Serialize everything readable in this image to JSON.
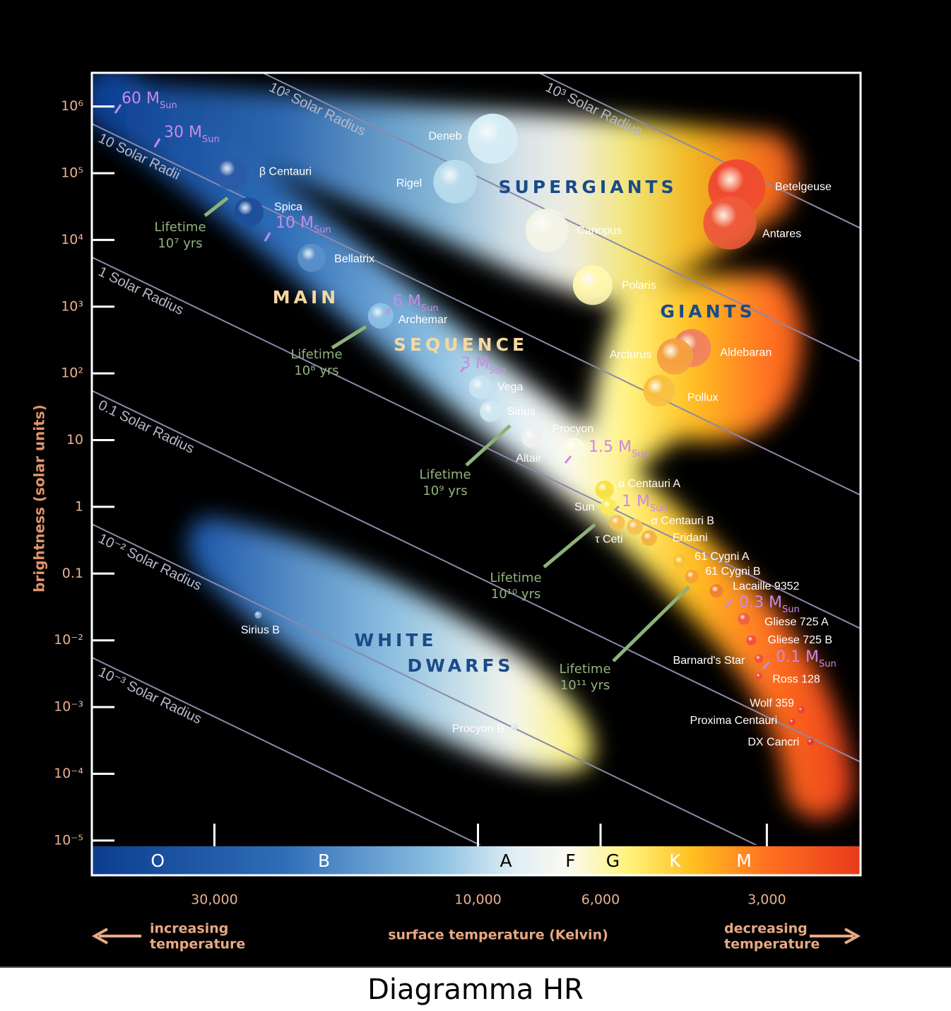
{
  "caption": "Diagramma HR",
  "chart_data": {
    "type": "scatter",
    "ylabel": "brightness (solar units)",
    "xlabel": "surface temperature (Kelvin)",
    "x_left_note": [
      "increasing",
      "temperature"
    ],
    "x_right_note": [
      "decreasing",
      "temperature"
    ],
    "log_x": true,
    "log_y": true,
    "xlim": [
      50000,
      2030
    ],
    "ylim": [
      8.6e-06,
      3200000
    ],
    "xticks": [
      {
        "value": 30000,
        "label": "30,000"
      },
      {
        "value": 10000,
        "label": "10,000"
      },
      {
        "value": 6000,
        "label": "6,000"
      },
      {
        "value": 3000,
        "label": "3,000"
      }
    ],
    "yticks": [
      {
        "value": 1000000,
        "label": "10⁶"
      },
      {
        "value": 100000,
        "label": "10⁵"
      },
      {
        "value": 10000,
        "label": "10⁴"
      },
      {
        "value": 1000,
        "label": "10³"
      },
      {
        "value": 100,
        "label": "10²"
      },
      10,
      1,
      0.1,
      {
        "value": 0.01,
        "label": "10⁻²"
      },
      {
        "value": 0.001,
        "label": "10⁻³"
      },
      {
        "value": 0.0001,
        "label": "10⁻⁴"
      },
      {
        "value": 1e-05,
        "label": "10⁻⁵"
      }
    ],
    "labels": [
      "β Centauri",
      "Spica",
      "Bellatrix",
      "Archemar",
      "Deneb",
      "Rigel",
      "Canopus",
      "Polaris",
      "Betelgeuse",
      "Antares",
      "Aldebaran",
      "Arcturus",
      "Pollux",
      "Vega",
      "Sirius",
      "Altair",
      "Procyon",
      "α Centauri A",
      "Sun",
      "τ Ceti",
      "α Centauri B",
      "Eridani",
      "61 Cygni A",
      "61 Cygni B",
      "Lacaille 9352",
      "Gliese 725 A",
      "Gliese 725 B",
      "Barnard's Star",
      "Ross 128",
      "Wolf 359",
      "Proxima Centauri",
      "DX Cancri",
      "Sirius B",
      "Procyon B"
    ],
    "x": [
      28000,
      26000,
      20000,
      15000,
      9400,
      11000,
      7500,
      6200,
      3400,
      3500,
      4100,
      4400,
      4700,
      9900,
      9500,
      8000,
      6700,
      5900,
      5800,
      5600,
      5200,
      4900,
      4300,
      4100,
      3700,
      3300,
      3200,
      3100,
      3100,
      2600,
      2700,
      2500,
      25000,
      8600
    ],
    "values": [
      100000,
      26000,
      5400,
      730,
      330000,
      75000,
      14000,
      2100,
      60000,
      18000,
      240,
      180,
      55,
      62,
      27,
      11,
      7.5,
      1.8,
      1,
      0.58,
      0.5,
      0.34,
      0.15,
      0.09,
      0.055,
      0.021,
      0.01,
      0.0053,
      0.0029,
      0.0009,
      0.0006,
      0.0003,
      0.024,
      0.0005
    ],
    "colors": [
      "#2a5aa8",
      "#1e4e9a",
      "#5a90c8",
      "#8ec0e6",
      "#d8eef6",
      "#b8dcec",
      "#f4f4e6",
      "#fff8b0",
      "#f04a30",
      "#ee5a3a",
      "#f08060",
      "#f5a040",
      "#f8c040",
      "#c8e4f2",
      "#d0e8f2",
      "#f0f0ee",
      "#fafae0",
      "#f8e040",
      "#faec50",
      "#f8c050",
      "#f6c050",
      "#f6b040",
      "#f8c030",
      "#f8a030",
      "#f08030",
      "#f06040",
      "#f05040",
      "#f05040",
      "#f04a3a",
      "#e84030",
      "#e84030",
      "#e03a28",
      "#88b0d8",
      "#d8e8e8"
    ],
    "radius_lines": {
      "radii": [
        1000,
        100,
        10,
        1,
        0.1,
        0.01,
        0.001
      ],
      "labels": [
        "10³ Solar Radius",
        "10² Solar Radius",
        "10 Solar Radii",
        "1 Solar Radius",
        "0.1 Solar Radius",
        "10⁻² Solar Radius",
        "10⁻³ Solar Radius"
      ]
    },
    "spectral_classes": {
      "labels": [
        "O",
        "B",
        "A",
        "F",
        "G",
        "K",
        "M"
      ],
      "temperatures": [
        38000,
        19000,
        8900,
        6800,
        5700,
        4400,
        3300
      ]
    },
    "region_labels": [
      "SUPERGIANTS",
      "GIANTS",
      "MAIN",
      "SEQUENCE",
      "WHITE",
      "DWARFS"
    ],
    "mass_labels": [
      {
        "text": "60 M",
        "sub": "Sun"
      },
      {
        "text": "30 M",
        "sub": "Sun"
      },
      {
        "text": "10 M",
        "sub": "Sun"
      },
      {
        "text": "6 M",
        "sub": "Sun"
      },
      {
        "text": "3 M",
        "sub": "Sun"
      },
      {
        "text": "1.5 M",
        "sub": "Sun"
      },
      {
        "text": "1 M",
        "sub": "Sun"
      },
      {
        "text": "0.3 M",
        "sub": "Sun"
      },
      {
        "text": "0.1 M",
        "sub": "Sun"
      }
    ],
    "lifetime_label": "Lifetime",
    "lifetimes": [
      "10⁷ yrs",
      "10⁸ yrs",
      "10⁹ yrs",
      "10¹⁰ yrs",
      "10¹¹ yrs"
    ]
  }
}
